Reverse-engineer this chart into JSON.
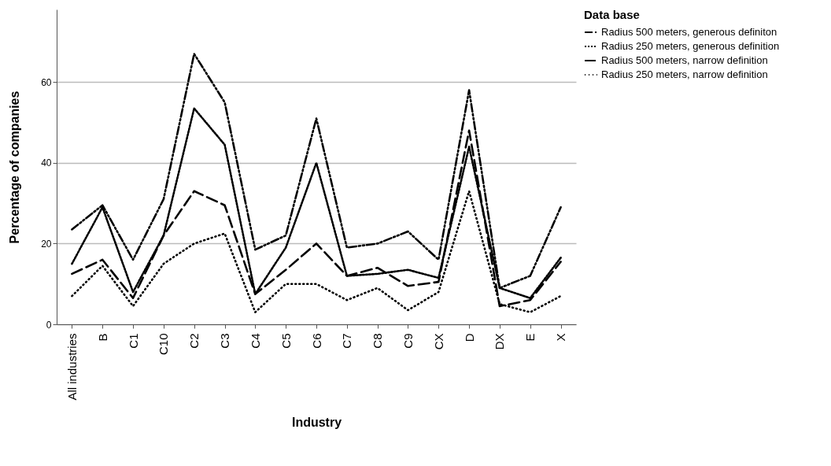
{
  "chart_data": {
    "type": "line",
    "xlabel": "Industry",
    "ylabel": "Percentage of companies",
    "legend_title": "Data base",
    "categories": [
      "All industries",
      "B",
      "C1",
      "C10",
      "C2",
      "C3",
      "C4",
      "C5",
      "C6",
      "C7",
      "C8",
      "C9",
      "CX",
      "D",
      "DX",
      "E",
      "X"
    ],
    "series": [
      {
        "name": "Radius 500 meters, generous definiton",
        "color": "#000000",
        "line_style": "dashed",
        "values": [
          23.5,
          29.5,
          16,
          31,
          67,
          55,
          18.5,
          22,
          51,
          19,
          20,
          23,
          16,
          58,
          9,
          12,
          29
        ]
      },
      {
        "name": "Radius 250 meters, generous definition",
        "color": "#000000",
        "line_style": "dotted",
        "values": [
          15,
          29,
          8,
          22,
          53.5,
          44.5,
          7.5,
          19,
          40,
          12,
          12.5,
          13.5,
          11.5,
          44,
          9,
          6.5,
          16.5
        ]
      },
      {
        "name": "Radius 500 meters, narrow definition",
        "color": "#000000",
        "line_style": "dashed",
        "values": [
          12.5,
          16,
          6.5,
          22,
          33,
          29.5,
          7.5,
          13.5,
          20,
          12,
          14,
          9.5,
          10.5,
          48,
          4.5,
          6,
          15.5
        ]
      },
      {
        "name": "Radius 250 meters, narrow definition",
        "color": "#000000",
        "line_style": "dotted",
        "values": [
          7,
          14.5,
          4.5,
          15,
          20,
          22.5,
          3,
          10,
          10,
          6,
          9,
          3.5,
          8,
          33,
          5,
          3,
          7
        ]
      }
    ],
    "ylim": [
      0,
      78
    ],
    "yticks": [
      0,
      20,
      40,
      60
    ],
    "grid": "y",
    "legend": "top right",
    "marker": "none"
  }
}
